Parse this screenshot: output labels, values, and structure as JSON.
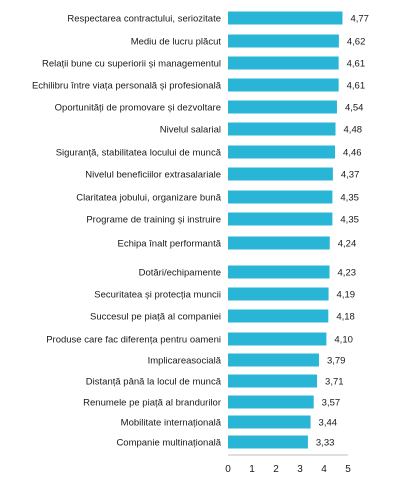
{
  "chart_data": {
    "type": "bar",
    "orientation": "horizontal",
    "title": "",
    "xlabel": "",
    "ylabel": "",
    "xlim": [
      0,
      5
    ],
    "ticks": [
      "0",
      "1",
      "2",
      "3",
      "4",
      "5"
    ],
    "grid": false,
    "legend": "none",
    "bar_color": "#29b6d6",
    "categories": [
      "Respectarea contractului, seriozitate",
      "Mediu de lucru plăcut",
      "Relații bune cu superiorii  și managementul",
      "Echilibru  între viața personală și profesională",
      "Oportunități  de promovare și dezvoltare",
      "Nivelul salarial",
      "Siguranță, stabilitatea locului de muncă",
      "Nivelul beneficiilor extrasalariale",
      "Claritatea jobului, organizare bună",
      "Programe de training și instruire",
      "Echipa înalt performantă",
      "Dotări/echipamente",
      "Securitatea și protecția muncii",
      "Succesul pe piață al companiei",
      "Produse care fac diferența pentru  oameni",
      "Implicareasocială",
      "Distanță până la locul de muncă",
      "Renumele pe piață al brandurilor",
      "Mobilitate  internațională",
      "Companie multinațională"
    ],
    "values": [
      4.77,
      4.62,
      4.61,
      4.61,
      4.54,
      4.48,
      4.46,
      4.37,
      4.35,
      4.35,
      4.24,
      4.23,
      4.19,
      4.18,
      4.1,
      3.79,
      3.71,
      3.57,
      3.44,
      3.33
    ],
    "value_labels": [
      "4,77",
      "4,62",
      "4,61",
      "4,61",
      "4,54",
      "4,48",
      "4,46",
      "4,37",
      "4,35",
      "4,35",
      "4,24",
      "4,23",
      "4,19",
      "4,18",
      "4,10",
      "3,79",
      "3,71",
      "3,57",
      "3,44",
      "3,33"
    ]
  }
}
